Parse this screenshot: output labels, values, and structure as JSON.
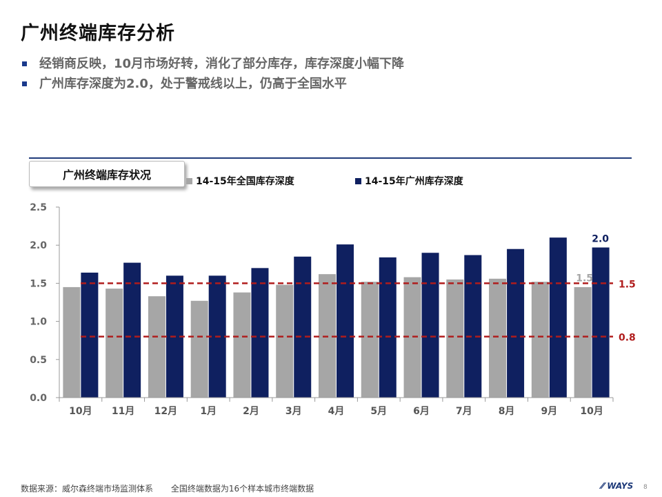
{
  "page": {
    "title": "广州终端库存分析",
    "bullets": [
      "经销商反映，10月市场好转，消化了部分库存，库存深度小幅下降",
      "广州库存深度为2.0，处于警戒线以上，仍高于全国水平"
    ],
    "footer_source": "数据来源：威尔森终端市场监测体系",
    "footer_note": "全国终端数据为16个样本城市终端数据",
    "logo_text": "WAYS",
    "page_number": "8"
  },
  "chart_data": {
    "type": "bar",
    "title": "广州终端库存状况",
    "categories": [
      "10月",
      "11月",
      "12月",
      "1月",
      "2月",
      "3月",
      "4月",
      "5月",
      "6月",
      "7月",
      "8月",
      "9月",
      "10月"
    ],
    "series": [
      {
        "name": "14-15年全国库存深度",
        "color": "#a6a6a6",
        "values": [
          1.45,
          1.43,
          1.33,
          1.27,
          1.38,
          1.48,
          1.62,
          1.52,
          1.58,
          1.55,
          1.56,
          1.52,
          1.45
        ]
      },
      {
        "name": "14-15年广州库存深度",
        "color": "#0f2060",
        "values": [
          1.64,
          1.77,
          1.6,
          1.6,
          1.7,
          1.85,
          2.01,
          1.84,
          1.9,
          1.87,
          1.95,
          2.1,
          1.97
        ]
      }
    ],
    "data_labels": [
      {
        "series": 1,
        "index": 12,
        "text": "2.0"
      },
      {
        "series": 0,
        "index": 12,
        "text": "1.5"
      }
    ],
    "reference_lines": [
      {
        "value": 1.5,
        "label": "1.5",
        "color": "#b01c1c"
      },
      {
        "value": 0.8,
        "label": "0.8",
        "color": "#b01c1c"
      }
    ],
    "ylim": [
      0,
      2.5
    ],
    "yticks": [
      "0.0",
      "0.5",
      "1.0",
      "1.5",
      "2.0",
      "2.5"
    ],
    "grid": false,
    "legend_position": "top"
  }
}
